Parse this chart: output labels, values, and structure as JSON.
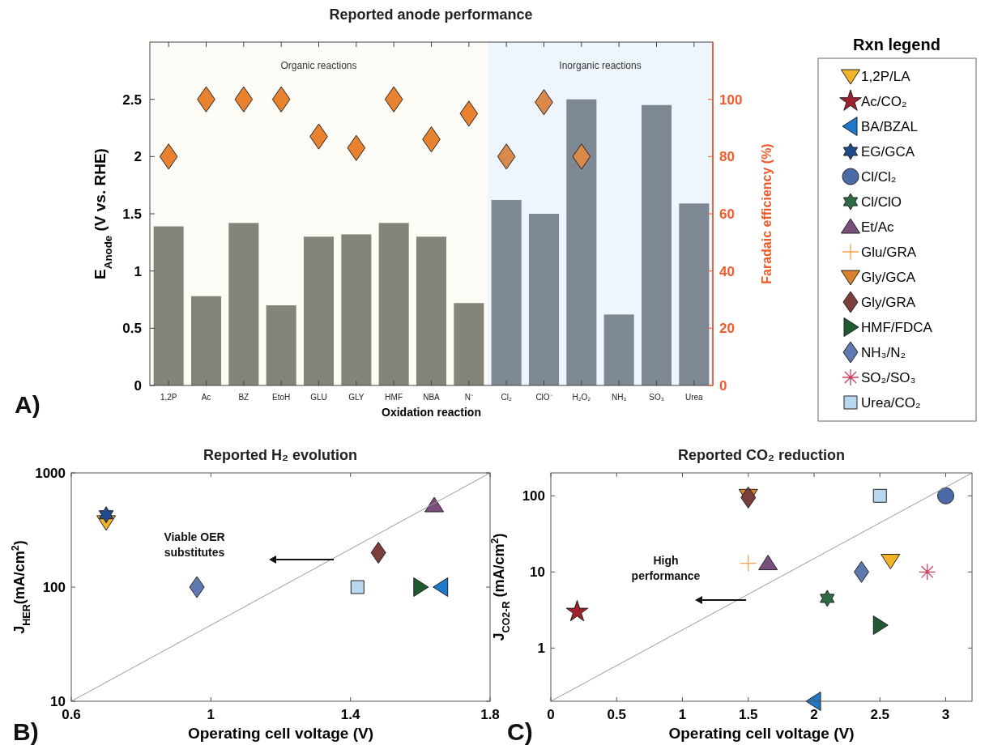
{
  "chart_data": [
    {
      "type": "bar",
      "title": "Reported anode performance",
      "xlabel": "Oxidation reaction",
      "ylabel": "E$_{Anode}$ (V vs. RHE)",
      "y2label": "Faradaic efficiency (%)",
      "categories": [
        "1,2P",
        "Ac",
        "BZ",
        "EtoH",
        "GLU",
        "GLY",
        "HMF",
        "NBA",
        "N⁻",
        "Cl₂",
        "ClO⁻",
        "H₂O₂",
        "NH₃",
        "SO₃",
        "Urea"
      ],
      "series": [
        {
          "type": "bar",
          "colors": [
            "#85847a",
            "#85847a",
            "#85847a",
            "#85847a",
            "#85847a",
            "#85847a",
            "#85847a",
            "#85847a",
            "#85847a",
            "#7e8892",
            "#7e8892",
            "#7e8892",
            "#7e8892",
            "#7e8892",
            "#7e8892"
          ],
          "values": [
            1.39,
            0.78,
            1.42,
            0.7,
            1.3,
            1.32,
            1.42,
            1.3,
            0.72,
            1.62,
            1.5,
            2.5,
            0.62,
            2.45,
            1.59
          ]
        },
        {
          "type": "scatter",
          "axis": "y2",
          "marker": "diamond",
          "colors": [
            "#e8822e",
            "#e8822e",
            "#e8822e",
            "#e8822e",
            "#e8822e",
            "#e8822e",
            "#e8822e",
            "#e8822e",
            "#e8822e",
            "#d98a4a",
            "#d98a4a",
            "#d98a4a",
            null,
            null,
            null
          ],
          "values": [
            80,
            100,
            100,
            100,
            87,
            83,
            100,
            86,
            95,
            80,
            99,
            80,
            null,
            null,
            null
          ]
        }
      ],
      "ylim": [
        0,
        3
      ],
      "yticks": [
        0,
        0.5,
        1,
        1.5,
        2,
        2.5
      ],
      "y2lim": [
        0,
        120
      ],
      "y2ticks": [
        0,
        20,
        40,
        60,
        80,
        100
      ],
      "bands": [
        {
          "axis": "x",
          "from": "1,2P",
          "to": "N⁻",
          "label": "Organic reactions",
          "color": "#fdfcf6"
        },
        {
          "axis": "x",
          "from": "Cl₂",
          "to": "Urea",
          "label": "Inorganic reactions",
          "color": "#eef5fc"
        }
      ],
      "annotations": [
        "A)"
      ]
    },
    {
      "type": "scatter",
      "title": "Reported H₂ evolution",
      "xlabel": "Operating cell voltage (V)",
      "ylabel": "J$_{HER}$(mA/cm$^{2}$)",
      "log": "y",
      "xlim": [
        0.6,
        1.8
      ],
      "xticks": [
        0.6,
        1,
        1.4,
        1.8
      ],
      "ylim": [
        10,
        1000
      ],
      "yticks": [
        10,
        100,
        1000
      ],
      "series": [
        {
          "color": "#f3b329",
          "marker": "triangle-down",
          "x": [
            0.7
          ],
          "values": [
            370
          ]
        },
        {
          "color": "#1f78c8",
          "marker": "triangle-left",
          "x": [
            1.66
          ],
          "values": [
            100
          ]
        },
        {
          "name": "EG/GCA",
          "color": "#204a8a",
          "x": [
            0.7
          ],
          "values": [
            430
          ]
        },
        {
          "color": "#7a4f7e",
          "marker": "triangle",
          "x": [
            1.64
          ],
          "values": [
            520
          ]
        },
        {
          "color": "#7a3f3a",
          "marker": "diamond",
          "x": [
            1.48
          ],
          "values": [
            200
          ]
        },
        {
          "color": "#1f5a30",
          "marker": "triangle-right",
          "x": [
            1.6
          ],
          "values": [
            100
          ]
        },
        {
          "color": "#6078b0",
          "marker": "diamond",
          "x": [
            0.96
          ],
          "values": [
            100
          ]
        },
        {
          "color": "#b8d8f0",
          "marker": "square",
          "x": [
            1.42
          ],
          "values": [
            100
          ]
        },
        {
          "type": "line",
          "color": "#999999",
          "x": [
            0.6,
            1.8
          ],
          "values": [
            10,
            1000
          ]
        }
      ],
      "annotations": [
        "Viable OER substitutes",
        "B)"
      ]
    },
    {
      "type": "scatter",
      "title": "Reported CO₂ reduction",
      "xlabel": "Operating cell voltage (V)",
      "ylabel": "J$_{CO2-R}$ (mA/cm$^{2}$)",
      "log": "y",
      "xlim": [
        0,
        3.2
      ],
      "xticks": [
        0,
        0.5,
        1,
        1.5,
        2,
        2.5,
        3
      ],
      "ylim": [
        0.2,
        200
      ],
      "yticks": [
        1,
        10,
        100
      ],
      "legend": "top right",
      "legend_title": "Rxn legend",
      "series": [
        {
          "name": "1,2P/LA",
          "color": "#f3b329",
          "marker": "triangle-down",
          "x": [
            2.58
          ],
          "values": [
            14
          ]
        },
        {
          "name": "Ac/CO₂",
          "color": "#a0202e",
          "marker": "star",
          "x": [
            0.2
          ],
          "values": [
            3
          ]
        },
        {
          "name": "BA/BZAL",
          "color": "#1f78c8",
          "marker": "triangle-left",
          "x": [
            2
          ],
          "values": [
            0.2
          ]
        },
        {
          "name": "Cl/Cl₂",
          "color": "#4a6aa8",
          "marker": "circle",
          "x": [
            3
          ],
          "values": [
            100
          ]
        },
        {
          "name": "Cl/ClO",
          "color": "#2e6b45",
          "x": [
            2.1
          ],
          "values": [
            4.5
          ]
        },
        {
          "name": "Et/Ac",
          "color": "#7a4f7e",
          "marker": "triangle",
          "x": [
            1.65
          ],
          "values": [
            13
          ]
        },
        {
          "name": "Glu/GRA",
          "color": "#f3a345",
          "marker": "plus",
          "x": [
            1.5
          ],
          "values": [
            13
          ]
        },
        {
          "name": "Gly/GCA",
          "color": "#d9822b",
          "marker": "triangle-down",
          "x": [
            1.5
          ],
          "values": [
            100
          ]
        },
        {
          "name": "Gly/GRA",
          "color": "#7a3f3a",
          "marker": "diamond",
          "x": [
            1.5
          ],
          "values": [
            95
          ]
        },
        {
          "name": "HMF/FDCA",
          "color": "#1f5a30",
          "marker": "triangle-right",
          "x": [
            2.5
          ],
          "values": [
            2
          ]
        },
        {
          "name": "NH₃/N₂",
          "color": "#6078b0",
          "marker": "diamond",
          "x": [
            2.36
          ],
          "values": [
            10
          ]
        },
        {
          "name": "SO₂/SO₃",
          "color": "#c94060",
          "marker": "cross",
          "x": [
            2.86
          ],
          "values": [
            10
          ]
        },
        {
          "name": "Urea/CO₂",
          "color": "#b8d8f0",
          "marker": "square",
          "x": [
            2.5
          ],
          "values": [
            100
          ]
        },
        {
          "type": "line",
          "color": "#999999",
          "x": [
            0,
            3.2
          ],
          "values": [
            0.2,
            200
          ]
        }
      ],
      "annotations": [
        "High performance",
        "C)"
      ]
    }
  ]
}
